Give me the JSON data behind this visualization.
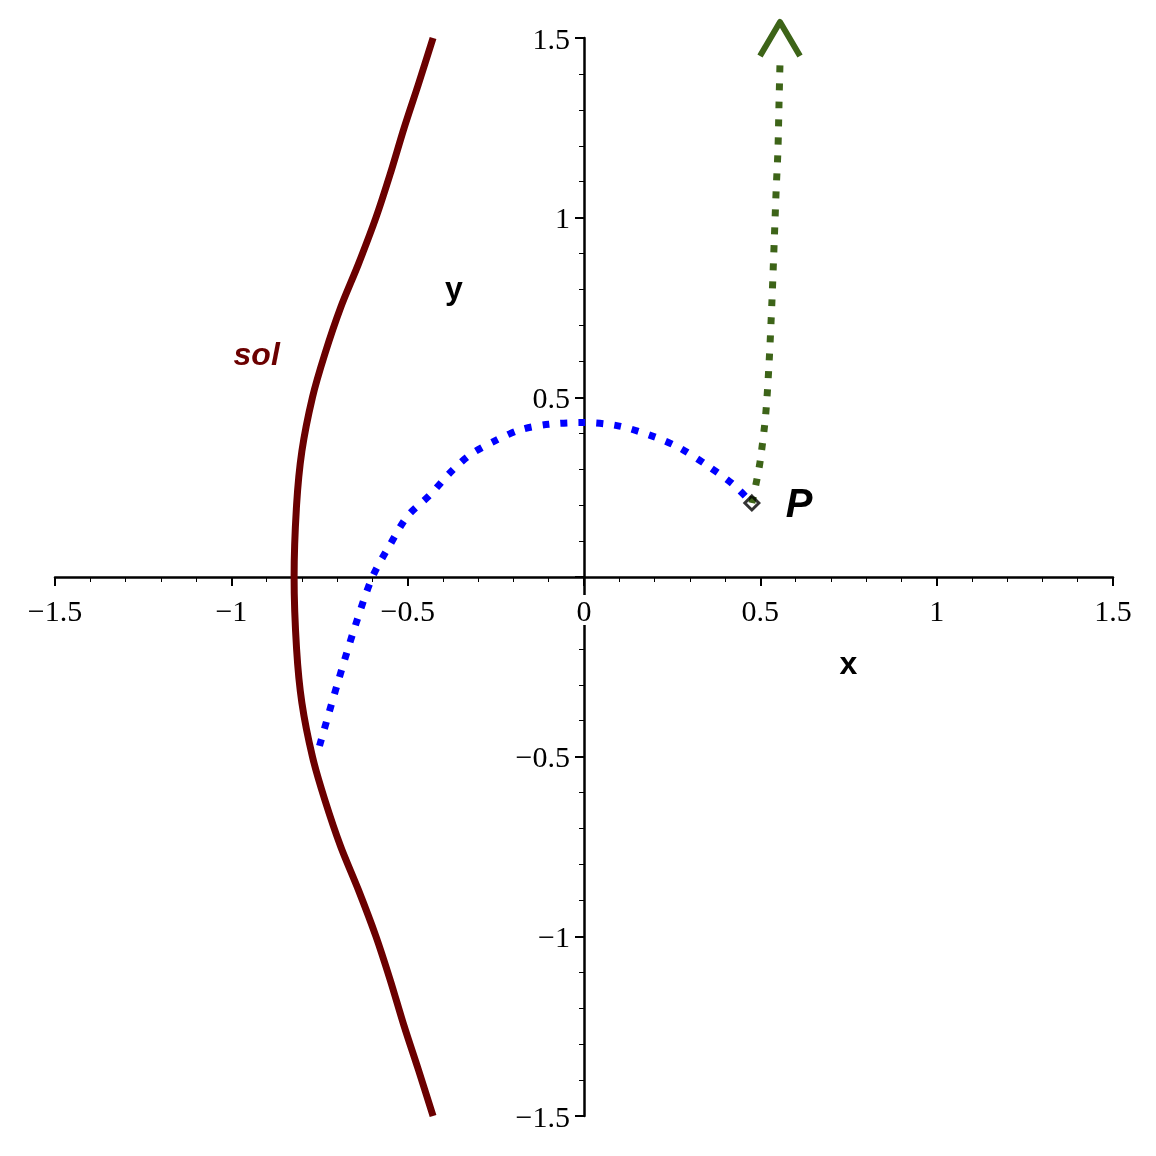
{
  "chart_data": {
    "type": "line",
    "xlabel": "x",
    "ylabel": "y",
    "xlim": [
      -1.5,
      1.5
    ],
    "ylim": [
      -1.5,
      1.5
    ],
    "xticks": [
      {
        "value": -1.5,
        "label": "−1.5"
      },
      {
        "value": -1,
        "label": "−1"
      },
      {
        "value": -0.5,
        "label": "−0.5"
      },
      {
        "value": 0,
        "label": "0"
      },
      {
        "value": 0.5,
        "label": "0.5"
      },
      {
        "value": 1,
        "label": "1"
      },
      {
        "value": 1.5,
        "label": "1.5"
      }
    ],
    "yticks": [
      {
        "value": -1.5,
        "label": "−1.5"
      },
      {
        "value": -1,
        "label": "−1"
      },
      {
        "value": -0.5,
        "label": "−0.5"
      },
      {
        "value": 0,
        "label": null
      },
      {
        "value": 0.5,
        "label": "0.5"
      },
      {
        "value": 1,
        "label": "1"
      },
      {
        "value": 1.5,
        "label": "1.5"
      }
    ],
    "grid": false,
    "legend": false,
    "annotations": [
      {
        "text": "P",
        "x": 0.476,
        "y": 0.206
      }
    ],
    "series": [
      {
        "name": "sol",
        "color": "#6b0000",
        "line_style": "solid",
        "marker": "none",
        "x": [
          -0.428,
          -0.47,
          -0.51,
          -0.55,
          -0.59,
          -0.64,
          -0.69,
          -0.735,
          -0.77,
          -0.8,
          -0.815,
          -0.822,
          -0.815,
          -0.8,
          -0.77,
          -0.735,
          -0.69,
          -0.64,
          -0.59,
          -0.55,
          -0.51,
          -0.47,
          -0.428
        ],
        "values": [
          1.5,
          1.37,
          1.25,
          1.12,
          1.0,
          0.87,
          0.75,
          0.62,
          0.5,
          0.35,
          0.2,
          0,
          -0.2,
          -0.35,
          -0.5,
          -0.62,
          -0.75,
          -0.87,
          -1.0,
          -1.12,
          -1.25,
          -1.37,
          -1.5
        ]
      },
      {
        "color": "#0000ff",
        "line_style": "dotted",
        "marker": "none",
        "x": [
          -0.75,
          -0.7,
          -0.65,
          -0.6,
          -0.55,
          -0.5,
          -0.437,
          -0.38,
          -0.323,
          -0.25,
          -0.18,
          -0.1,
          0,
          0.1,
          0.2,
          0.27,
          0.35,
          0.42,
          0.476
        ],
        "values": [
          -0.47,
          -0.3,
          -0.14,
          0,
          0.09,
          0.17,
          0.228,
          0.29,
          0.34,
          0.38,
          0.41,
          0.425,
          0.43,
          0.42,
          0.39,
          0.36,
          0.31,
          0.26,
          0.206
        ]
      },
      {
        "color": "#3d6418",
        "line_style": "dotted",
        "marker": "none",
        "x": [
          0.476,
          0.49,
          0.5,
          0.515,
          0.525,
          0.533,
          0.54,
          0.545,
          0.55,
          0.553,
          0.556
        ],
        "values": [
          0.206,
          0.27,
          0.326,
          0.45,
          0.6,
          0.77,
          0.95,
          1.08,
          1.19,
          1.32,
          1.44
        ]
      },
      {
        "type": "scatter",
        "color": "#000000",
        "marker": "diamond",
        "x": [
          0.476
        ],
        "values": [
          0.206
        ]
      }
    ]
  }
}
